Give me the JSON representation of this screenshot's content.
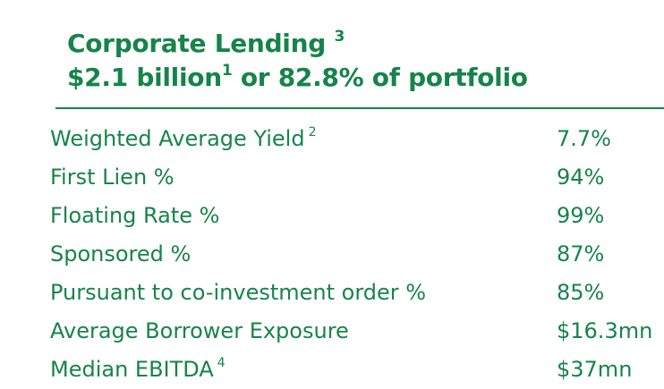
{
  "header": {
    "title": "Corporate Lending",
    "title_footnote": "3",
    "amount": "$2.1 billion",
    "amount_footnote": "1",
    "portfolio_share": " or 82.8% of portfolio"
  },
  "metrics": [
    {
      "label": "Weighted Average Yield",
      "footnote": "2",
      "value": "7.7%"
    },
    {
      "label": "First Lien %",
      "footnote": "",
      "value": "94%"
    },
    {
      "label": "Floating Rate %",
      "footnote": "",
      "value": "99%"
    },
    {
      "label": "Sponsored %",
      "footnote": "",
      "value": "87%"
    },
    {
      "label": "Pursuant to co-investment order %",
      "footnote": "",
      "value": "85%"
    },
    {
      "label": "Average Borrower Exposure",
      "footnote": "",
      "value": "$16.3mn"
    },
    {
      "label": "Median EBITDA",
      "footnote": "4",
      "value": "$37mn"
    }
  ],
  "colors": {
    "accent": "#16844a",
    "background": "#ffffff"
  }
}
